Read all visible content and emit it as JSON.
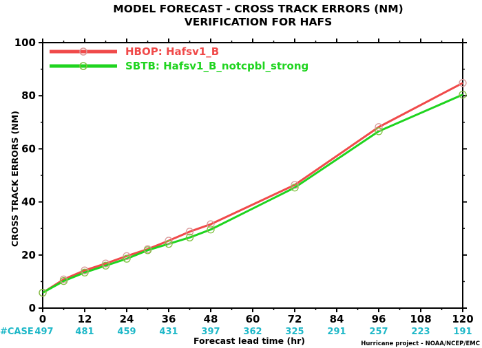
{
  "chart_data": {
    "type": "line",
    "title": "MODEL FORECAST - CROSS TRACK ERRORS (NM)",
    "subtitle": "VERIFICATION FOR HAFS",
    "xlabel": "Forecast lead time (hr)",
    "ylabel": "CROSS TRACK ERRORS (NM)",
    "xlim": [
      0,
      120
    ],
    "ylim": [
      0,
      100
    ],
    "x_ticks": [
      0,
      12,
      24,
      36,
      48,
      60,
      72,
      84,
      96,
      108,
      120
    ],
    "y_ticks": [
      0,
      20,
      40,
      60,
      80,
      100
    ],
    "grid": false,
    "legend_position": "top-left",
    "series": [
      {
        "name": "HBOP: Hafsv1_B",
        "color": "#f04a4a",
        "marker_color": "#d99a9a",
        "x": [
          0,
          6,
          12,
          18,
          24,
          30,
          36,
          42,
          48,
          72,
          96,
          120
        ],
        "y": [
          5.8,
          10.8,
          14.2,
          16.8,
          19.6,
          22.2,
          25.4,
          28.8,
          31.6,
          46.4,
          68.2,
          84.8
        ]
      },
      {
        "name": "SBTB: Hafsv1_B_notcpbl_strong",
        "color": "#1fd41f",
        "marker_color": "#7fbf3f",
        "x": [
          0,
          6,
          12,
          18,
          24,
          30,
          36,
          42,
          48,
          72,
          96,
          120
        ],
        "y": [
          5.8,
          10.2,
          13.4,
          16.0,
          18.6,
          21.8,
          24.2,
          26.6,
          29.6,
          45.4,
          66.6,
          80.4
        ]
      }
    ],
    "case_counts": {
      "label": "#CASE",
      "color": "#1fb8c8",
      "x": [
        0,
        12,
        24,
        36,
        48,
        60,
        72,
        84,
        96,
        108,
        120
      ],
      "values": [
        "497",
        "481",
        "459",
        "431",
        "397",
        "362",
        "325",
        "291",
        "257",
        "223",
        "191"
      ]
    },
    "credit": "Hurricane project - NOAA/NCEP/EMC"
  }
}
